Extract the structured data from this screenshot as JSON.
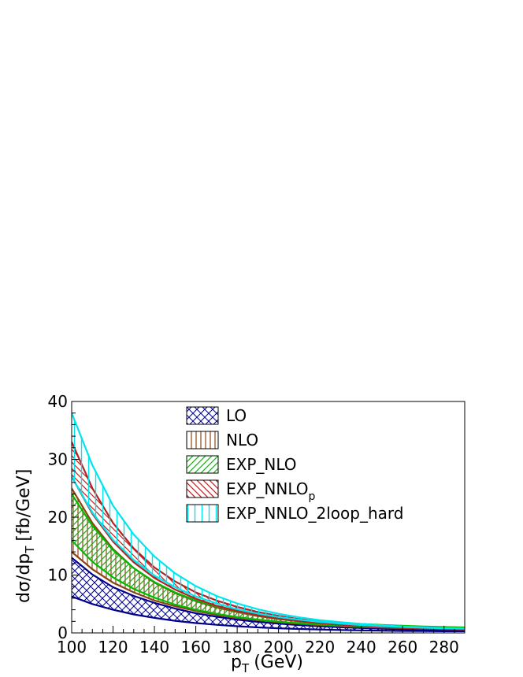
{
  "chart_data": {
    "type": "area",
    "xlabel": "p",
    "xlabel_sub": "T",
    "xlabel_unit": "(GeV)",
    "ylabel": "dσ/dp",
    "ylabel_sub": "T",
    "ylabel_unit": "[fb/GeV]",
    "xlim": [
      100,
      290
    ],
    "ylim": [
      0,
      40
    ],
    "x_ticks": [
      100,
      120,
      140,
      160,
      180,
      200,
      220,
      240,
      260,
      280
    ],
    "y_ticks": [
      0,
      10,
      20,
      30,
      40
    ],
    "legend_position": "top-center",
    "x": [
      100,
      110,
      120,
      130,
      140,
      150,
      160,
      170,
      180,
      190,
      200,
      210,
      220,
      230,
      240,
      250,
      260,
      270,
      280,
      290
    ],
    "series": [
      {
        "name": "LO",
        "color": "#00008b",
        "hatch": "crosshatch",
        "upper": [
          13.0,
          10.1,
          7.9,
          6.4,
          5.2,
          4.2,
          3.4,
          2.8,
          2.3,
          1.9,
          1.6,
          1.35,
          1.15,
          0.98,
          0.84,
          0.73,
          0.64,
          0.57,
          0.51,
          0.47
        ],
        "lower": [
          6.3,
          5.0,
          4.0,
          3.2,
          2.6,
          2.1,
          1.7,
          1.4,
          1.15,
          0.95,
          0.8,
          0.68,
          0.58,
          0.5,
          0.43,
          0.38,
          0.34,
          0.31,
          0.29,
          0.28
        ]
      },
      {
        "name": "NLO",
        "color": "#8b4513",
        "hatch": "vertical",
        "upper": [
          25.0,
          19.0,
          14.5,
          11.2,
          8.7,
          6.9,
          5.5,
          4.4,
          3.6,
          2.9,
          2.4,
          2.0,
          1.7,
          1.45,
          1.25,
          1.1,
          0.97,
          0.87,
          0.78,
          0.72
        ],
        "lower": [
          14.0,
          11.0,
          8.7,
          7.0,
          5.6,
          4.6,
          3.8,
          3.1,
          2.6,
          2.2,
          1.85,
          1.58,
          1.36,
          1.18,
          1.03,
          0.91,
          0.81,
          0.73,
          0.66,
          0.61
        ]
      },
      {
        "name": "EXP_NLO",
        "name_sub": "",
        "color": "#00bb00",
        "hatch": "diagonal-right",
        "upper": [
          24.0,
          18.5,
          14.3,
          11.2,
          8.8,
          7.0,
          5.6,
          4.6,
          3.8,
          3.2,
          2.7,
          2.3,
          2.0,
          1.75,
          1.55,
          1.38,
          1.24,
          1.12,
          1.02,
          0.95
        ],
        "lower": [
          16.0,
          12.3,
          9.6,
          7.6,
          6.1,
          4.9,
          4.0,
          3.3,
          2.75,
          2.3,
          1.95,
          1.67,
          1.45,
          1.27,
          1.12,
          1.0,
          0.9,
          0.82,
          0.75,
          0.7
        ]
      },
      {
        "name": "EXP_NNLO",
        "name_sub": "p",
        "color": "#b22222",
        "hatch": "diagonal-left",
        "upper": [
          33.0,
          25.0,
          19.0,
          14.6,
          11.3,
          8.9,
          7.0,
          5.6,
          4.5,
          3.6,
          2.95,
          2.4,
          2.0,
          1.65,
          1.38,
          1.17,
          1.0,
          0.86,
          0.75,
          0.66
        ],
        "lower": [
          27.0,
          20.6,
          15.8,
          12.2,
          9.5,
          7.5,
          5.9,
          4.7,
          3.8,
          3.05,
          2.5,
          2.05,
          1.7,
          1.42,
          1.2,
          1.02,
          0.88,
          0.76,
          0.67,
          0.6
        ]
      },
      {
        "name": "EXP_NNLO_2loop_hard",
        "name_sub": "",
        "color": "#00e5ee",
        "hatch": "vertical-sparse",
        "upper": [
          38.0,
          29.0,
          22.0,
          17.0,
          13.2,
          10.3,
          8.1,
          6.4,
          5.1,
          4.1,
          3.3,
          2.7,
          2.2,
          1.85,
          1.55,
          1.3,
          1.12,
          0.97,
          0.85,
          0.76
        ],
        "lower": [
          27.0,
          20.8,
          16.1,
          12.6,
          9.9,
          7.9,
          6.3,
          5.1,
          4.1,
          3.35,
          2.75,
          2.28,
          1.9,
          1.6,
          1.36,
          1.17,
          1.02,
          0.9,
          0.8,
          0.73
        ]
      }
    ]
  }
}
